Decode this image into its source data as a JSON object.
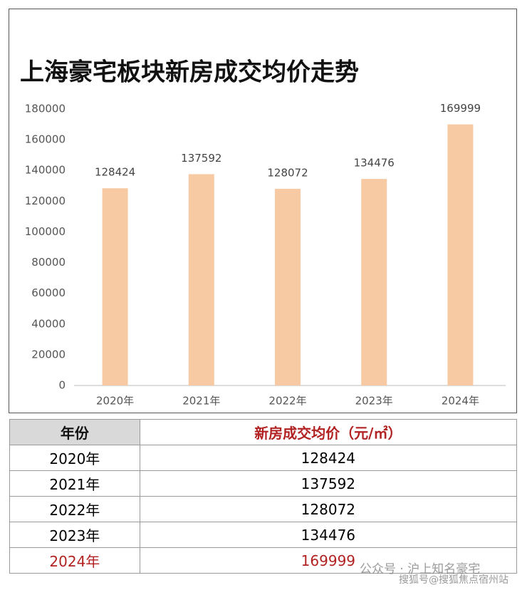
{
  "chart_data": {
    "type": "bar",
    "title": "上海豪宅板块新房成交均价走势",
    "categories": [
      "2020年",
      "2021年",
      "2022年",
      "2023年",
      "2024年"
    ],
    "values": [
      128424,
      137592,
      128072,
      134476,
      169999
    ],
    "color": "#f7caa4",
    "ylim": [
      0,
      180000
    ],
    "yticks": [
      0,
      20000,
      40000,
      60000,
      80000,
      100000,
      120000,
      140000,
      160000,
      180000
    ],
    "grid": false
  },
  "table": {
    "header": [
      "年份",
      "新房成交均价（元/㎡）"
    ],
    "rows": [
      [
        "2020年",
        128424
      ],
      [
        "2021年",
        137592
      ],
      [
        "2022年",
        128072
      ],
      [
        "2023年",
        134476
      ],
      [
        "2024年",
        169999
      ]
    ]
  },
  "watermark": [
    "公众号 · 沪上知名豪宅",
    "搜狐号@搜狐焦点宿州站"
  ]
}
